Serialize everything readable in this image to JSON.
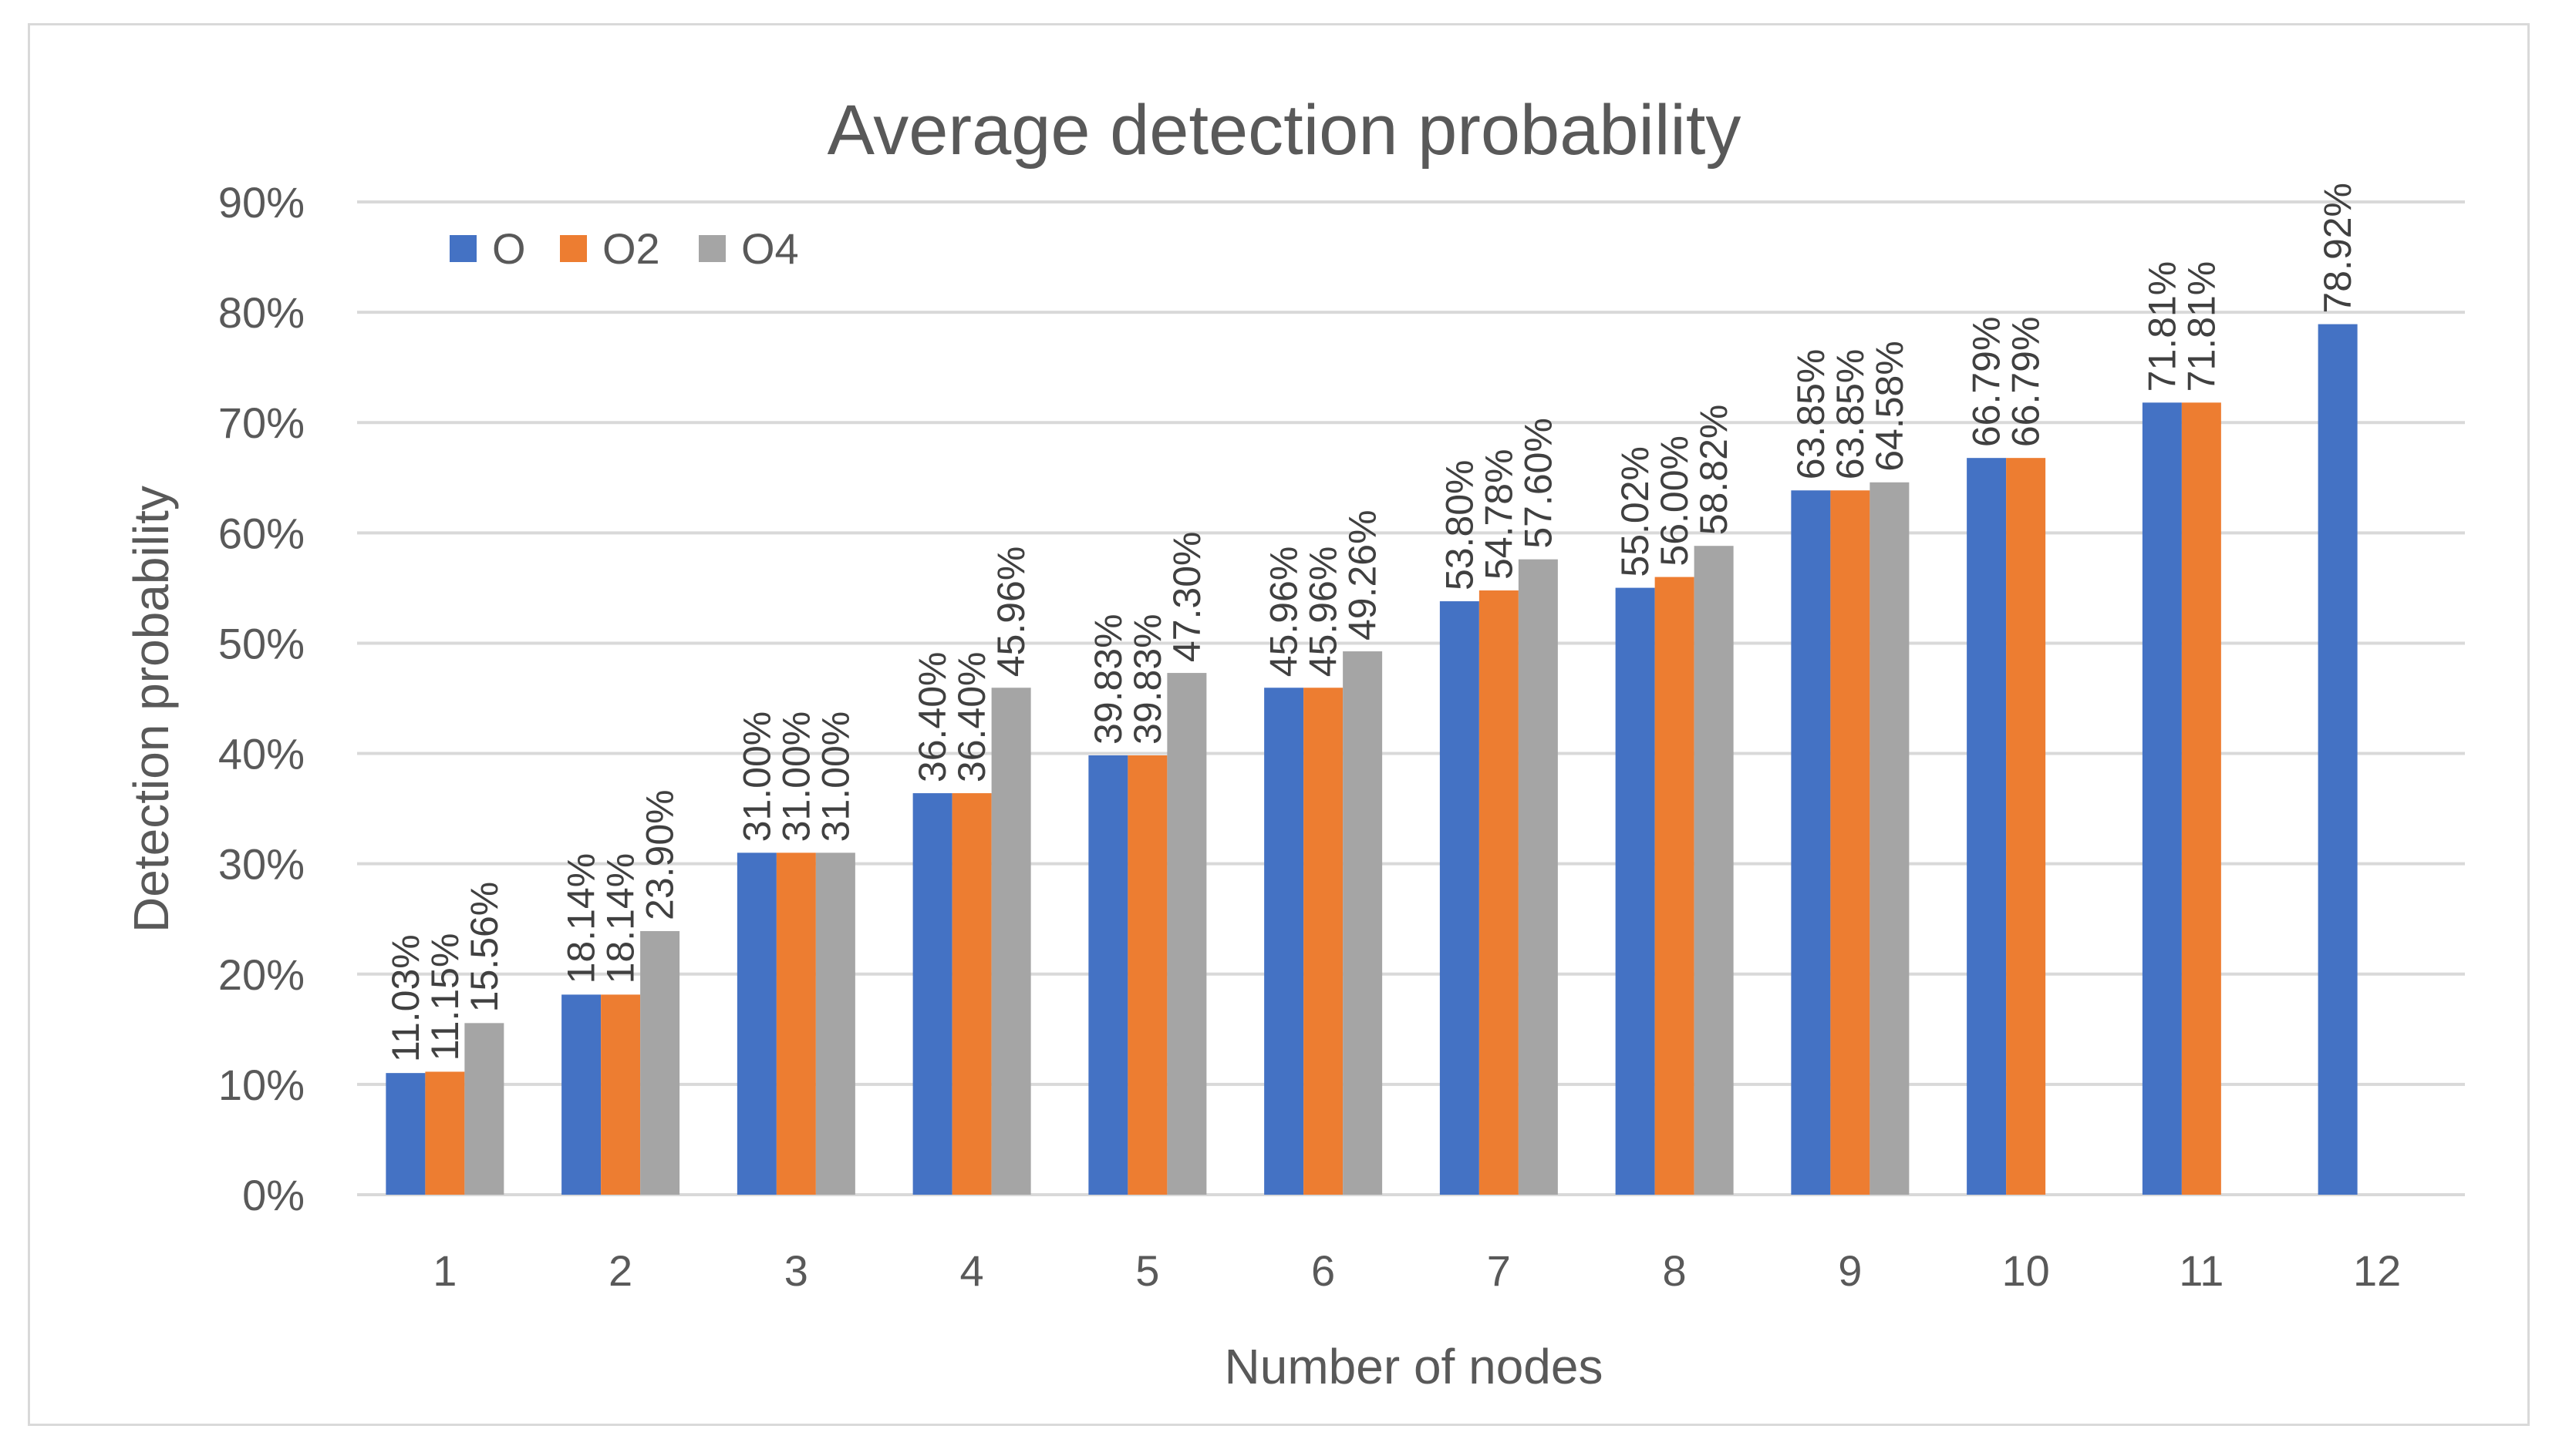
{
  "chart_data": {
    "type": "bar",
    "title": "Average detection probability",
    "xlabel": "Number of nodes",
    "ylabel": "Detection probability",
    "ylim": [
      0,
      90
    ],
    "yticks": [
      "0%",
      "10%",
      "20%",
      "30%",
      "40%",
      "50%",
      "60%",
      "70%",
      "80%",
      "90%"
    ],
    "grid": true,
    "legend_position": "top-left",
    "categories": [
      "1",
      "2",
      "3",
      "4",
      "5",
      "6",
      "7",
      "8",
      "9",
      "10",
      "11",
      "12"
    ],
    "series": [
      {
        "name": "O",
        "color": "#4472c4",
        "values": [
          11.03,
          18.14,
          31.0,
          36.4,
          39.83,
          45.96,
          53.8,
          55.02,
          63.85,
          66.79,
          71.81,
          78.92
        ],
        "labels": [
          "11.03%",
          "18.14%",
          "31.00%",
          "36.40%",
          "39.83%",
          "45.96%",
          "53.80%",
          "55.02%",
          "63.85%",
          "66.79%",
          "71.81%",
          "78.92%"
        ]
      },
      {
        "name": "O2",
        "color": "#ed7d31",
        "values": [
          11.15,
          18.14,
          31.0,
          36.4,
          39.83,
          45.96,
          54.78,
          56.0,
          63.85,
          66.79,
          71.81,
          null
        ],
        "labels": [
          "11.15%",
          "18.14%",
          "31.00%",
          "36.40%",
          "39.83%",
          "45.96%",
          "54.78%",
          "56.00%",
          "63.85%",
          "66.79%",
          "71.81%",
          null
        ]
      },
      {
        "name": "O4",
        "color": "#a5a5a5",
        "values": [
          15.56,
          23.9,
          31.0,
          45.96,
          47.3,
          49.26,
          57.6,
          58.82,
          64.58,
          null,
          null,
          null
        ],
        "labels": [
          "15.56%",
          "23.90%",
          "31.00%",
          "45.96%",
          "47.30%",
          "49.26%",
          "57.60%",
          "58.82%",
          "64.58%",
          null,
          null,
          null
        ]
      }
    ]
  }
}
